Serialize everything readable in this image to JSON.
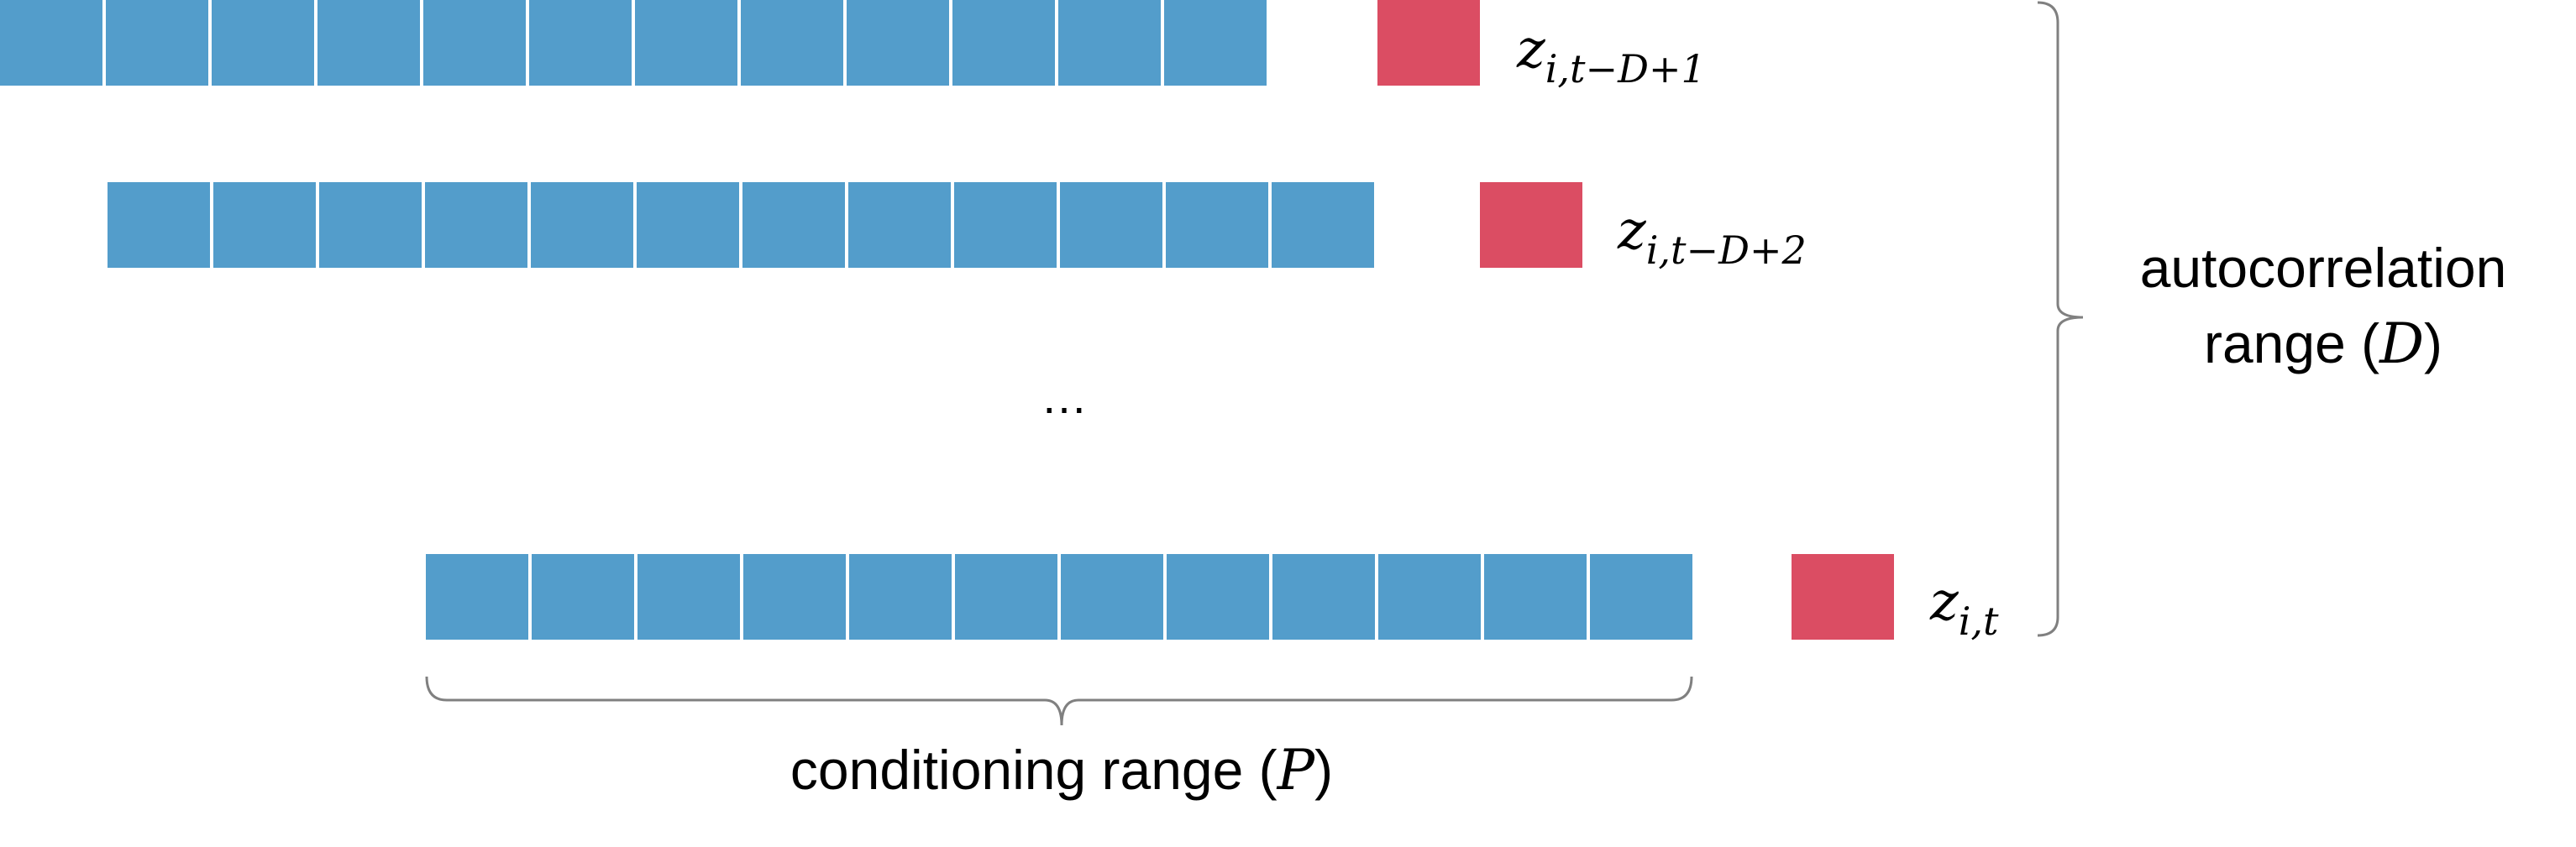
{
  "diagram": {
    "rows": [
      {
        "name": "row-first",
        "cell_count": 12,
        "target_base": "z",
        "target_subscript": "i,t−D+1"
      },
      {
        "name": "row-second",
        "cell_count": 12,
        "target_base": "z",
        "target_subscript": "i,t−D+2"
      },
      {
        "name": "row-last",
        "cell_count": 12,
        "target_base": "z",
        "target_subscript": "i,t"
      }
    ],
    "ellipsis": "…",
    "autocorrelation_label": {
      "line1": "autocorrelation",
      "line2_text": "range (",
      "line2_var": "D",
      "line2_close": ")"
    },
    "conditioning_label": {
      "text": "conditioning range (",
      "var": "P",
      "close": ")"
    },
    "colors": {
      "cell": "#539dcb",
      "target": "#db4d63",
      "brace": "#808080"
    }
  }
}
